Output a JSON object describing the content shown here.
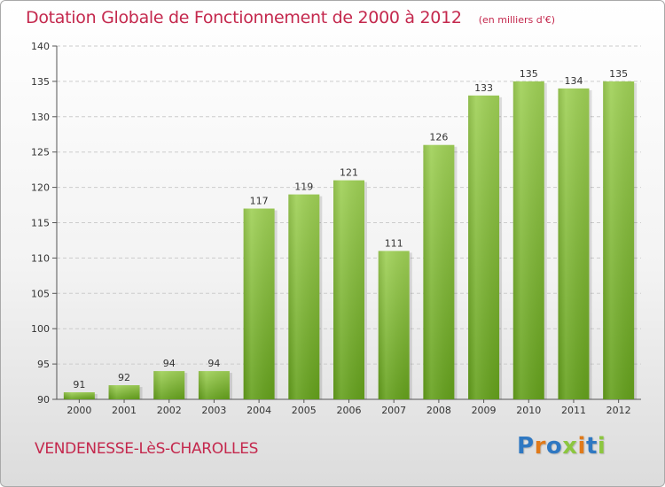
{
  "chart_data": {
    "type": "bar",
    "title": "Dotation Globale de Fonctionnement de 2000 à 2012",
    "unit": "(en milliers d'€)",
    "categories": [
      "2000",
      "2001",
      "2002",
      "2003",
      "2004",
      "2005",
      "2006",
      "2007",
      "2008",
      "2009",
      "2010",
      "2011",
      "2012"
    ],
    "values": [
      91,
      92,
      94,
      94,
      117,
      119,
      121,
      111,
      126,
      133,
      135,
      134,
      135
    ],
    "ylim": [
      90,
      140
    ],
    "yticks": [
      90,
      95,
      100,
      105,
      110,
      115,
      120,
      125,
      130,
      135,
      140
    ],
    "grid": "horizontal-dashed",
    "bar_color_top": "#9fd056",
    "bar_color_bottom": "#64a01c"
  },
  "footer": {
    "commune": "VENDENESSE-LèS-CHAROLLES",
    "brand": "Proxiti"
  },
  "colors": {
    "title": "#c4284d",
    "axis_text": "#333333",
    "grid": "#cccccc"
  },
  "brand_letter_colors": [
    "#2f78c2",
    "#e07a1a",
    "#2f78c2",
    "#8cc63f",
    "#e07a1a",
    "#2f78c2",
    "#8cc63f"
  ]
}
